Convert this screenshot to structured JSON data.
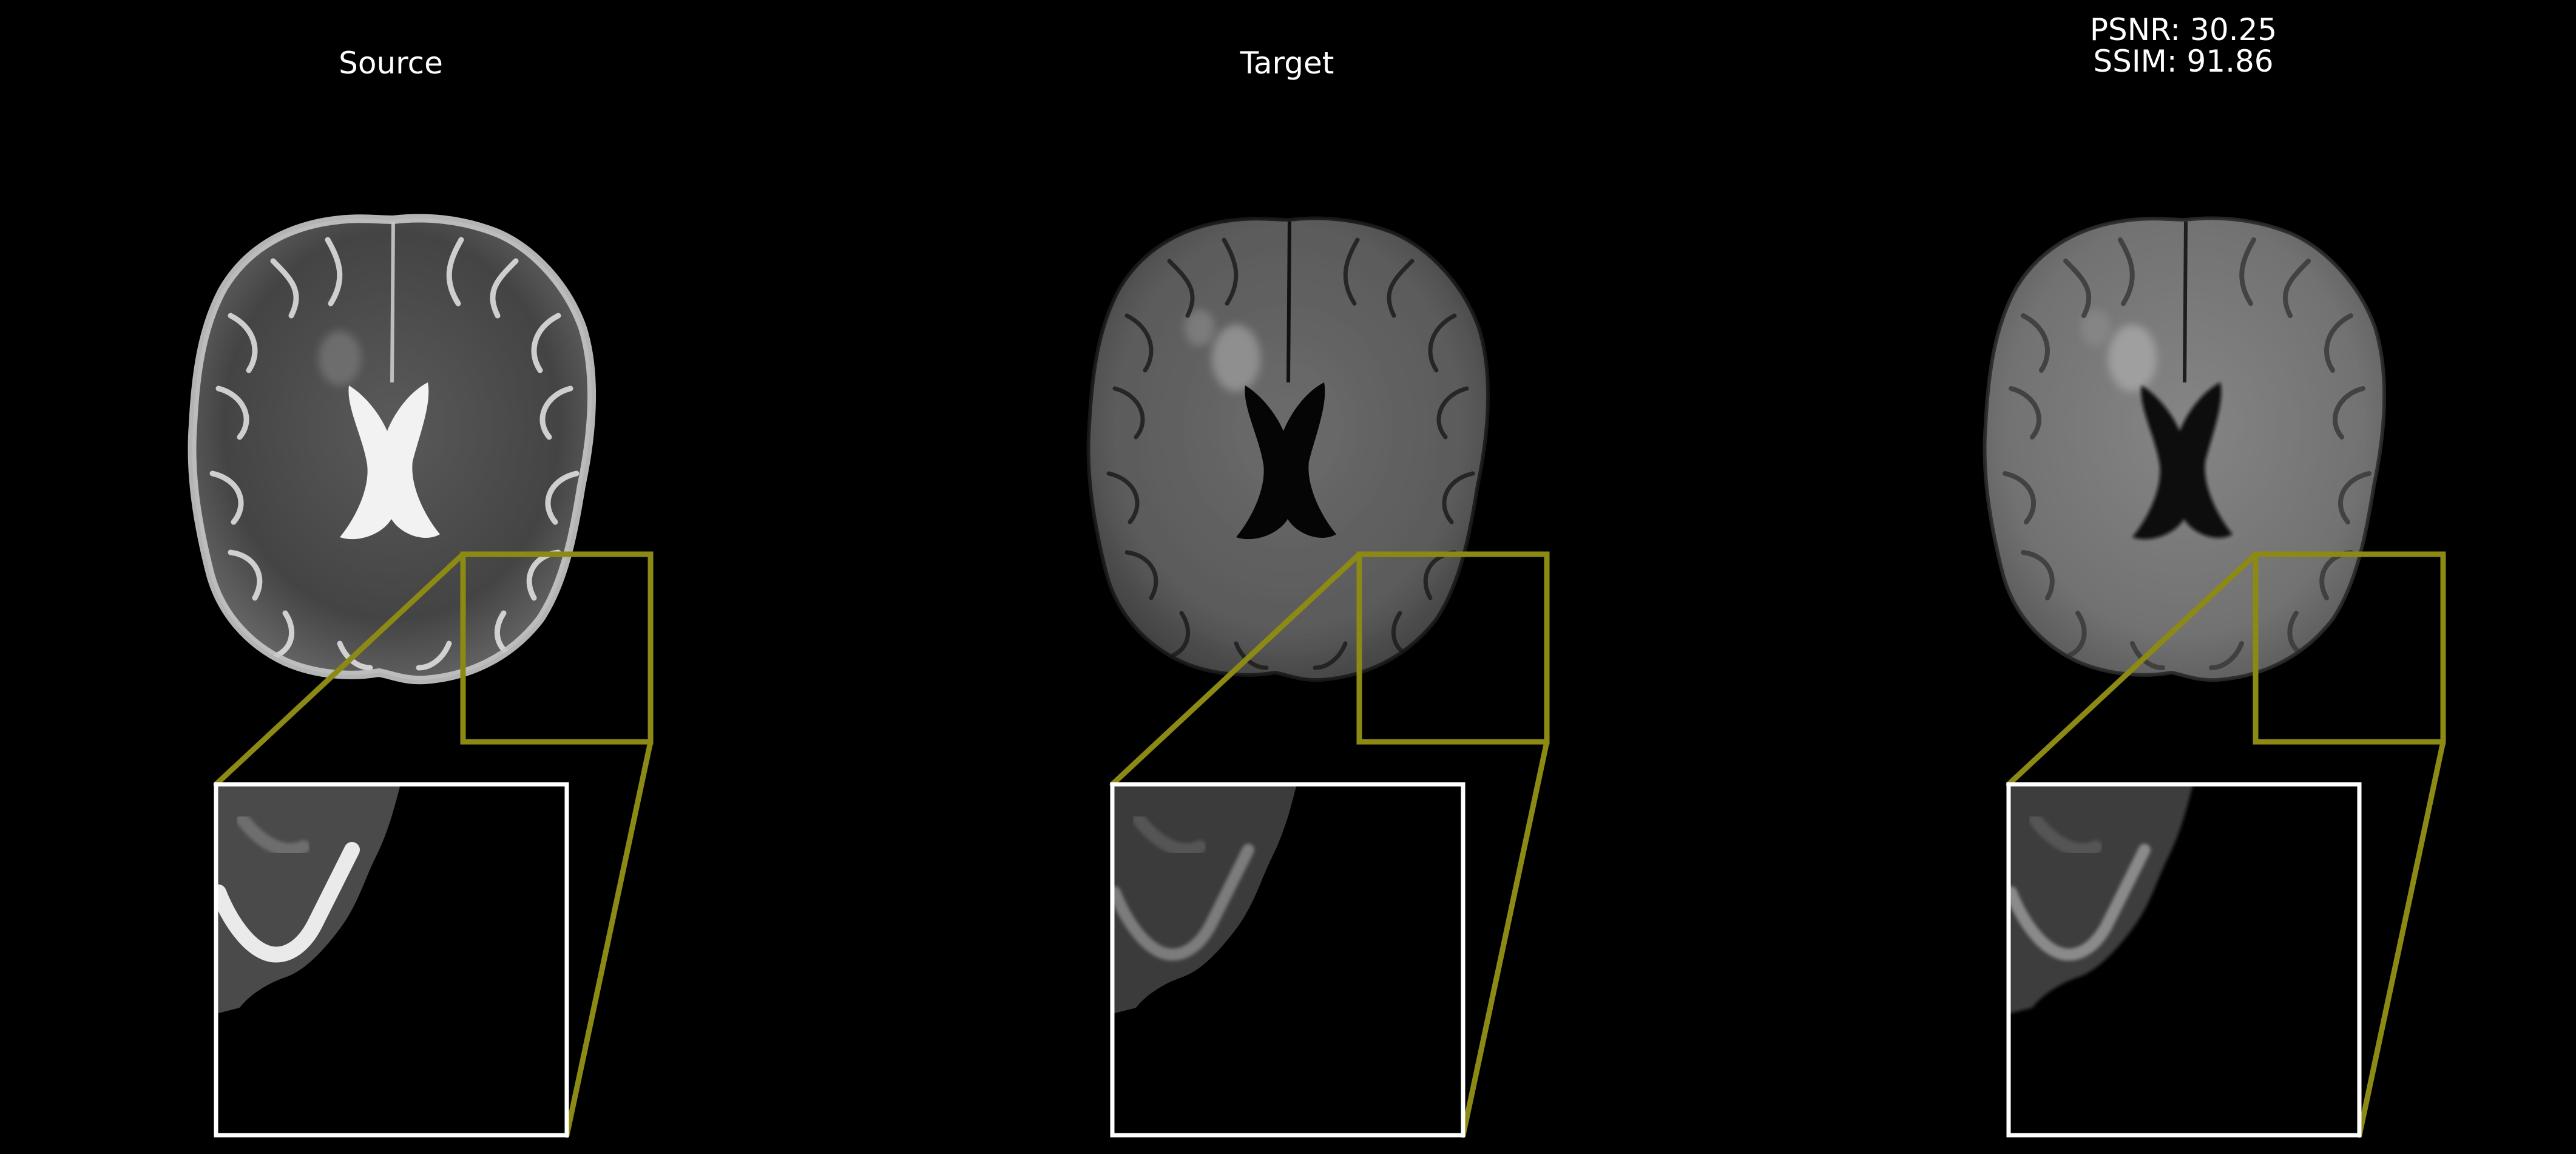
{
  "panels": [
    {
      "id": "source",
      "title_lines": [
        "Source"
      ],
      "style": "t2"
    },
    {
      "id": "target",
      "title_lines": [
        "Target"
      ],
      "style": "flair"
    },
    {
      "id": "output",
      "title_lines": [
        "PSNR: 30.25",
        "SSIM: 91.86"
      ],
      "style": "synth"
    }
  ],
  "colors": {
    "background": "#000000",
    "title_text": "#ffffff",
    "zoom_region_box": "#8c8a14",
    "zoom_connector": "#8c8a14",
    "inset_border": "#ffffff"
  },
  "icons": [
    "brain-mri-slice",
    "zoom-region-box",
    "zoom-inset"
  ]
}
